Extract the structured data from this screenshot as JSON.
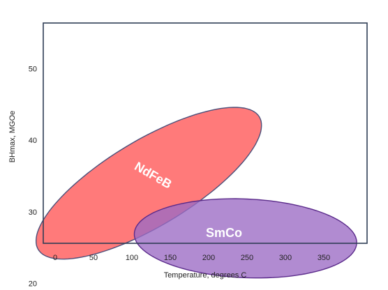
{
  "chart_data": {
    "type": "region-ellipse",
    "xlabel": "Temperature, degrees C",
    "ylabel": "BHmax, MGOe",
    "x_ticks": [
      0,
      50,
      100,
      150,
      200,
      250,
      300,
      350
    ],
    "y_ticks": [
      20,
      30,
      40,
      50
    ],
    "grid": false,
    "regions": [
      {
        "name": "NdFeB",
        "fill": "#ff6b6b",
        "stroke": "#4a4f7a",
        "opacity": 0.9,
        "center": [
          122,
          34
        ],
        "semi_major": 168,
        "semi_minor": 6,
        "angle_deg": -31,
        "label_pos": [
          125,
          34.6
        ],
        "label_rotation": 30
      },
      {
        "name": "SmCo",
        "fill": "#9b6ac4",
        "stroke": "#5a2a8a",
        "opacity": 0.78,
        "center": [
          248,
          26.3
        ],
        "semi_major": 145,
        "semi_minor": 5.5,
        "angle_deg": 2.5,
        "label_pos": [
          220,
          26.5
        ],
        "label_rotation": 0
      }
    ],
    "colors": {
      "frame": "#2f3d55",
      "text": "#222222"
    }
  }
}
